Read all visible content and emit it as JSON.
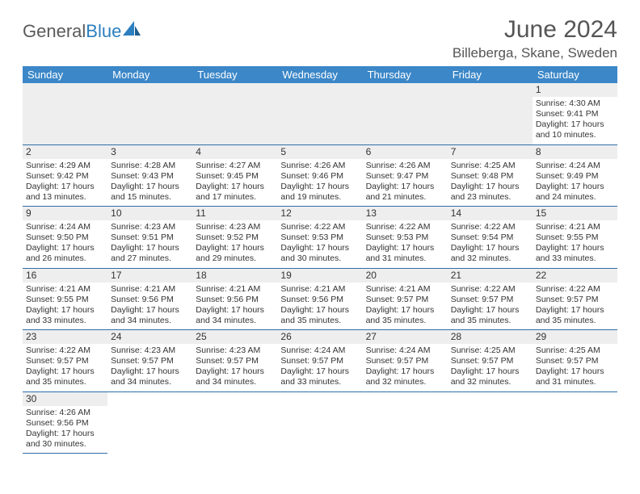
{
  "logo": {
    "text1": "General",
    "text2": "Blue"
  },
  "header": {
    "month": "June 2024",
    "location": "Billeberga, Skane, Sweden"
  },
  "colors": {
    "header_bg": "#3b87c8",
    "border": "#2f6fa8",
    "daynum_bg": "#eeeeee",
    "logo_gray": "#5a5a5a",
    "logo_blue": "#2b7fbf"
  },
  "weekdays": [
    "Sunday",
    "Monday",
    "Tuesday",
    "Wednesday",
    "Thursday",
    "Friday",
    "Saturday"
  ],
  "weeks": [
    [
      null,
      null,
      null,
      null,
      null,
      null,
      {
        "n": "1",
        "sr": "Sunrise: 4:30 AM",
        "ss": "Sunset: 9:41 PM",
        "dl1": "Daylight: 17 hours",
        "dl2": "and 10 minutes."
      }
    ],
    [
      {
        "n": "2",
        "sr": "Sunrise: 4:29 AM",
        "ss": "Sunset: 9:42 PM",
        "dl1": "Daylight: 17 hours",
        "dl2": "and 13 minutes."
      },
      {
        "n": "3",
        "sr": "Sunrise: 4:28 AM",
        "ss": "Sunset: 9:43 PM",
        "dl1": "Daylight: 17 hours",
        "dl2": "and 15 minutes."
      },
      {
        "n": "4",
        "sr": "Sunrise: 4:27 AM",
        "ss": "Sunset: 9:45 PM",
        "dl1": "Daylight: 17 hours",
        "dl2": "and 17 minutes."
      },
      {
        "n": "5",
        "sr": "Sunrise: 4:26 AM",
        "ss": "Sunset: 9:46 PM",
        "dl1": "Daylight: 17 hours",
        "dl2": "and 19 minutes."
      },
      {
        "n": "6",
        "sr": "Sunrise: 4:26 AM",
        "ss": "Sunset: 9:47 PM",
        "dl1": "Daylight: 17 hours",
        "dl2": "and 21 minutes."
      },
      {
        "n": "7",
        "sr": "Sunrise: 4:25 AM",
        "ss": "Sunset: 9:48 PM",
        "dl1": "Daylight: 17 hours",
        "dl2": "and 23 minutes."
      },
      {
        "n": "8",
        "sr": "Sunrise: 4:24 AM",
        "ss": "Sunset: 9:49 PM",
        "dl1": "Daylight: 17 hours",
        "dl2": "and 24 minutes."
      }
    ],
    [
      {
        "n": "9",
        "sr": "Sunrise: 4:24 AM",
        "ss": "Sunset: 9:50 PM",
        "dl1": "Daylight: 17 hours",
        "dl2": "and 26 minutes."
      },
      {
        "n": "10",
        "sr": "Sunrise: 4:23 AM",
        "ss": "Sunset: 9:51 PM",
        "dl1": "Daylight: 17 hours",
        "dl2": "and 27 minutes."
      },
      {
        "n": "11",
        "sr": "Sunrise: 4:23 AM",
        "ss": "Sunset: 9:52 PM",
        "dl1": "Daylight: 17 hours",
        "dl2": "and 29 minutes."
      },
      {
        "n": "12",
        "sr": "Sunrise: 4:22 AM",
        "ss": "Sunset: 9:53 PM",
        "dl1": "Daylight: 17 hours",
        "dl2": "and 30 minutes."
      },
      {
        "n": "13",
        "sr": "Sunrise: 4:22 AM",
        "ss": "Sunset: 9:53 PM",
        "dl1": "Daylight: 17 hours",
        "dl2": "and 31 minutes."
      },
      {
        "n": "14",
        "sr": "Sunrise: 4:22 AM",
        "ss": "Sunset: 9:54 PM",
        "dl1": "Daylight: 17 hours",
        "dl2": "and 32 minutes."
      },
      {
        "n": "15",
        "sr": "Sunrise: 4:21 AM",
        "ss": "Sunset: 9:55 PM",
        "dl1": "Daylight: 17 hours",
        "dl2": "and 33 minutes."
      }
    ],
    [
      {
        "n": "16",
        "sr": "Sunrise: 4:21 AM",
        "ss": "Sunset: 9:55 PM",
        "dl1": "Daylight: 17 hours",
        "dl2": "and 33 minutes."
      },
      {
        "n": "17",
        "sr": "Sunrise: 4:21 AM",
        "ss": "Sunset: 9:56 PM",
        "dl1": "Daylight: 17 hours",
        "dl2": "and 34 minutes."
      },
      {
        "n": "18",
        "sr": "Sunrise: 4:21 AM",
        "ss": "Sunset: 9:56 PM",
        "dl1": "Daylight: 17 hours",
        "dl2": "and 34 minutes."
      },
      {
        "n": "19",
        "sr": "Sunrise: 4:21 AM",
        "ss": "Sunset: 9:56 PM",
        "dl1": "Daylight: 17 hours",
        "dl2": "and 35 minutes."
      },
      {
        "n": "20",
        "sr": "Sunrise: 4:21 AM",
        "ss": "Sunset: 9:57 PM",
        "dl1": "Daylight: 17 hours",
        "dl2": "and 35 minutes."
      },
      {
        "n": "21",
        "sr": "Sunrise: 4:22 AM",
        "ss": "Sunset: 9:57 PM",
        "dl1": "Daylight: 17 hours",
        "dl2": "and 35 minutes."
      },
      {
        "n": "22",
        "sr": "Sunrise: 4:22 AM",
        "ss": "Sunset: 9:57 PM",
        "dl1": "Daylight: 17 hours",
        "dl2": "and 35 minutes."
      }
    ],
    [
      {
        "n": "23",
        "sr": "Sunrise: 4:22 AM",
        "ss": "Sunset: 9:57 PM",
        "dl1": "Daylight: 17 hours",
        "dl2": "and 35 minutes."
      },
      {
        "n": "24",
        "sr": "Sunrise: 4:23 AM",
        "ss": "Sunset: 9:57 PM",
        "dl1": "Daylight: 17 hours",
        "dl2": "and 34 minutes."
      },
      {
        "n": "25",
        "sr": "Sunrise: 4:23 AM",
        "ss": "Sunset: 9:57 PM",
        "dl1": "Daylight: 17 hours",
        "dl2": "and 34 minutes."
      },
      {
        "n": "26",
        "sr": "Sunrise: 4:24 AM",
        "ss": "Sunset: 9:57 PM",
        "dl1": "Daylight: 17 hours",
        "dl2": "and 33 minutes."
      },
      {
        "n": "27",
        "sr": "Sunrise: 4:24 AM",
        "ss": "Sunset: 9:57 PM",
        "dl1": "Daylight: 17 hours",
        "dl2": "and 32 minutes."
      },
      {
        "n": "28",
        "sr": "Sunrise: 4:25 AM",
        "ss": "Sunset: 9:57 PM",
        "dl1": "Daylight: 17 hours",
        "dl2": "and 32 minutes."
      },
      {
        "n": "29",
        "sr": "Sunrise: 4:25 AM",
        "ss": "Sunset: 9:57 PM",
        "dl1": "Daylight: 17 hours",
        "dl2": "and 31 minutes."
      }
    ],
    [
      {
        "n": "30",
        "sr": "Sunrise: 4:26 AM",
        "ss": "Sunset: 9:56 PM",
        "dl1": "Daylight: 17 hours",
        "dl2": "and 30 minutes."
      },
      null,
      null,
      null,
      null,
      null,
      null
    ]
  ]
}
